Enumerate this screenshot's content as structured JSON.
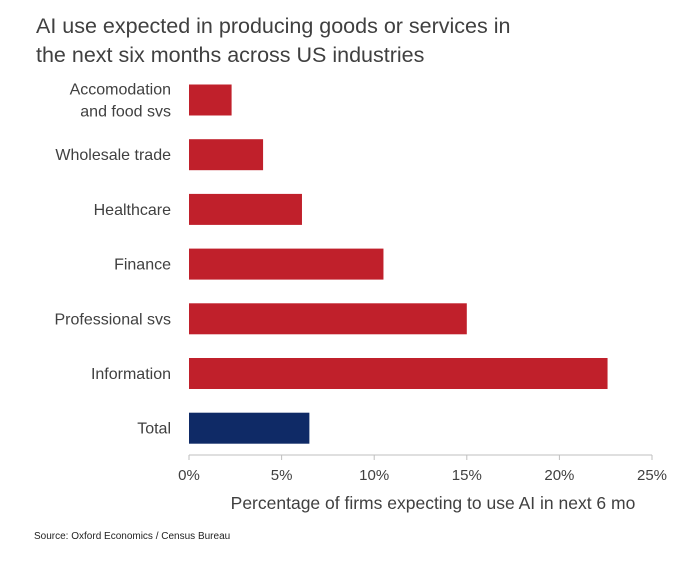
{
  "chart_data": {
    "type": "bar",
    "orientation": "horizontal",
    "title_lines": [
      "AI use expected in producing goods or services in",
      "the next six months across US industries"
    ],
    "categories": [
      [
        "Accomodation",
        "and food svs"
      ],
      [
        "Wholesale trade"
      ],
      [
        "Healthcare"
      ],
      [
        "Finance"
      ],
      [
        "Professional svs"
      ],
      [
        "Information"
      ],
      [
        "Total"
      ]
    ],
    "values": [
      2.3,
      4.0,
      6.1,
      10.5,
      15.0,
      22.6,
      6.5
    ],
    "bar_colors": [
      "#c0202b",
      "#c0202b",
      "#c0202b",
      "#c0202b",
      "#c0202b",
      "#c0202b",
      "#0f2a66"
    ],
    "xlim": [
      0,
      25
    ],
    "xticks": [
      0,
      5,
      10,
      15,
      20,
      25
    ],
    "xtick_labels": [
      "0%",
      "5%",
      "10%",
      "15%",
      "20%",
      "25%"
    ],
    "xlabel": "Percentage of firms expecting to use AI in next 6 mo",
    "ylabel": "",
    "grid": false,
    "legend": "none"
  },
  "source": "Source:  Oxford Economics / Census Bureau"
}
